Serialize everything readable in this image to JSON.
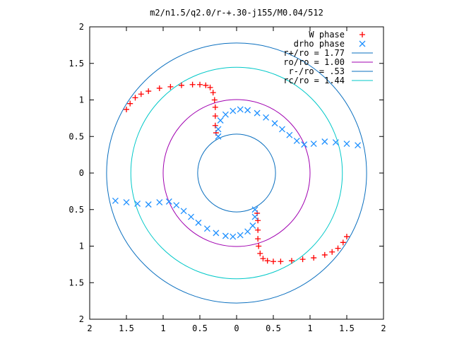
{
  "chart_data": {
    "type": "scatter",
    "title": "m2/n1.5/q2.0/r-+.30-j155/M0.04/512",
    "xlabel": "",
    "ylabel": "",
    "xlim": [
      -2,
      2
    ],
    "ylim": [
      -2,
      2
    ],
    "x_tick_values": [
      -2,
      -1.5,
      -1,
      -0.5,
      0,
      0.5,
      1,
      1.5,
      2
    ],
    "x_tick_labels": [
      "2",
      "1.5",
      "1",
      "0.5",
      "0",
      "0.5",
      "1",
      "1.5",
      "2"
    ],
    "y_tick_values": [
      2,
      1.5,
      1,
      0.5,
      0,
      -0.5,
      -1,
      -1.5,
      -2
    ],
    "y_tick_labels": [
      "2",
      "1.5",
      "1",
      "0.5",
      "0",
      "0.5",
      "1",
      "1.5",
      "2"
    ],
    "grid": false,
    "legend_position": "top-right",
    "circles": [
      {
        "name": "r+/ro = 1.77",
        "radius": 1.77,
        "color": "#0a6fbf"
      },
      {
        "name": "ro/ro = 1.00",
        "radius": 1.0,
        "color": "#a000b0"
      },
      {
        "name": "r-/ro = .53",
        "radius": 0.53,
        "color": "#0a6fbf"
      },
      {
        "name": "rc/ro = 1.44",
        "radius": 1.44,
        "color": "#00c8c8"
      }
    ],
    "series": [
      {
        "name": "W phase",
        "marker": "+",
        "color": "#ff0000",
        "points": [
          [
            -1.5,
            0.87
          ],
          [
            -1.45,
            0.95
          ],
          [
            -1.38,
            1.03
          ],
          [
            -1.3,
            1.08
          ],
          [
            -1.2,
            1.12
          ],
          [
            -1.05,
            1.16
          ],
          [
            -0.9,
            1.18
          ],
          [
            -0.75,
            1.2
          ],
          [
            -0.6,
            1.21
          ],
          [
            -0.5,
            1.21
          ],
          [
            -0.42,
            1.2
          ],
          [
            -0.36,
            1.17
          ],
          [
            -0.32,
            1.1
          ],
          [
            -0.3,
            1.0
          ],
          [
            -0.29,
            0.9
          ],
          [
            -0.29,
            0.78
          ],
          [
            -0.29,
            0.65
          ],
          [
            -0.28,
            0.55
          ],
          [
            1.5,
            -0.87
          ],
          [
            1.45,
            -0.95
          ],
          [
            1.38,
            -1.03
          ],
          [
            1.3,
            -1.08
          ],
          [
            1.2,
            -1.12
          ],
          [
            1.05,
            -1.16
          ],
          [
            0.9,
            -1.18
          ],
          [
            0.75,
            -1.2
          ],
          [
            0.6,
            -1.21
          ],
          [
            0.5,
            -1.21
          ],
          [
            0.42,
            -1.2
          ],
          [
            0.36,
            -1.17
          ],
          [
            0.32,
            -1.1
          ],
          [
            0.3,
            -1.0
          ],
          [
            0.29,
            -0.9
          ],
          [
            0.29,
            -0.78
          ],
          [
            0.29,
            -0.65
          ],
          [
            0.28,
            -0.55
          ]
        ]
      },
      {
        "name": "drho phase",
        "marker": "x",
        "color": "#1e90ff",
        "points": [
          [
            -0.25,
            0.5
          ],
          [
            -0.25,
            0.6
          ],
          [
            -0.22,
            0.72
          ],
          [
            -0.15,
            0.8
          ],
          [
            -0.05,
            0.85
          ],
          [
            0.05,
            0.87
          ],
          [
            0.15,
            0.86
          ],
          [
            0.28,
            0.82
          ],
          [
            0.4,
            0.76
          ],
          [
            0.52,
            0.68
          ],
          [
            0.62,
            0.6
          ],
          [
            0.72,
            0.52
          ],
          [
            0.82,
            0.44
          ],
          [
            0.92,
            0.39
          ],
          [
            1.05,
            0.4
          ],
          [
            1.2,
            0.43
          ],
          [
            1.35,
            0.42
          ],
          [
            1.5,
            0.4
          ],
          [
            1.65,
            0.38
          ],
          [
            0.25,
            -0.5
          ],
          [
            0.25,
            -0.6
          ],
          [
            0.22,
            -0.72
          ],
          [
            0.15,
            -0.8
          ],
          [
            0.05,
            -0.85
          ],
          [
            -0.05,
            -0.87
          ],
          [
            -0.15,
            -0.86
          ],
          [
            -0.28,
            -0.82
          ],
          [
            -0.4,
            -0.76
          ],
          [
            -0.52,
            -0.68
          ],
          [
            -0.62,
            -0.6
          ],
          [
            -0.72,
            -0.52
          ],
          [
            -0.82,
            -0.44
          ],
          [
            -0.92,
            -0.39
          ],
          [
            -1.05,
            -0.4
          ],
          [
            -1.2,
            -0.43
          ],
          [
            -1.35,
            -0.42
          ],
          [
            -1.5,
            -0.4
          ],
          [
            -1.65,
            -0.38
          ]
        ]
      }
    ]
  }
}
